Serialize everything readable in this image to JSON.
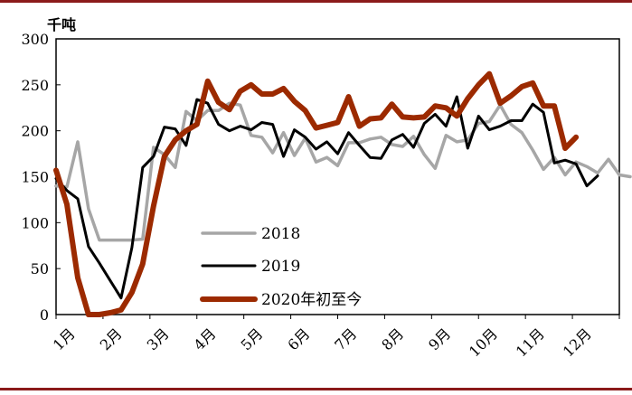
{
  "colors": {
    "frame_rule": "#8b1a1a",
    "axis": "#000000"
  },
  "chart_data": {
    "type": "line",
    "y_unit": "千吨",
    "ylim": [
      0,
      300
    ],
    "y_ticks": [
      "0",
      "50",
      "100",
      "150",
      "200",
      "250",
      "300"
    ],
    "x_ticks": [
      "1月",
      "2月",
      "3月",
      "4月",
      "5月",
      "6月",
      "7月",
      "8月",
      "9月",
      "10月",
      "11月",
      "12月"
    ],
    "grid": false,
    "legend_position": "center-bottom",
    "series": [
      {
        "name": "2018",
        "color": "#a6a6a6",
        "width": 3.5,
        "values": [
          140,
          139,
          188,
          115,
          81,
          81,
          81,
          81,
          82,
          182,
          174,
          160,
          221,
          211,
          222,
          222,
          230,
          228,
          195,
          193,
          176,
          198,
          173,
          192,
          166,
          171,
          162,
          187,
          187,
          191,
          193,
          185,
          183,
          194,
          174,
          159,
          195,
          188,
          190,
          208,
          210,
          228,
          207,
          198,
          179,
          158,
          171,
          152,
          166,
          161,
          154,
          169,
          152,
          150
        ]
      },
      {
        "name": "2019",
        "color": "#000000",
        "width": 3,
        "values": [
          148,
          135,
          126,
          74,
          56,
          37,
          18,
          73,
          160,
          172,
          204,
          202,
          184,
          234,
          230,
          207,
          200,
          205,
          201,
          209,
          207,
          172,
          201,
          193,
          180,
          188,
          175,
          198,
          184,
          171,
          170,
          190,
          196,
          182,
          208,
          218,
          205,
          237,
          181,
          216,
          201,
          205,
          211,
          211,
          229,
          220,
          165,
          168,
          164,
          140,
          151
        ]
      },
      {
        "name": "2020年初至今",
        "color": "#9c2a00",
        "width": 6,
        "values": [
          157,
          120,
          40,
          0,
          0,
          2,
          5,
          24,
          55,
          118,
          172,
          190,
          200,
          207,
          254,
          231,
          223,
          243,
          250,
          240,
          240,
          246,
          232,
          222,
          203,
          206,
          209,
          237,
          205,
          213,
          214,
          229,
          215,
          214,
          215,
          227,
          225,
          216,
          235,
          250,
          262,
          230,
          238,
          248,
          252,
          227,
          227,
          181,
          193
        ]
      }
    ]
  }
}
